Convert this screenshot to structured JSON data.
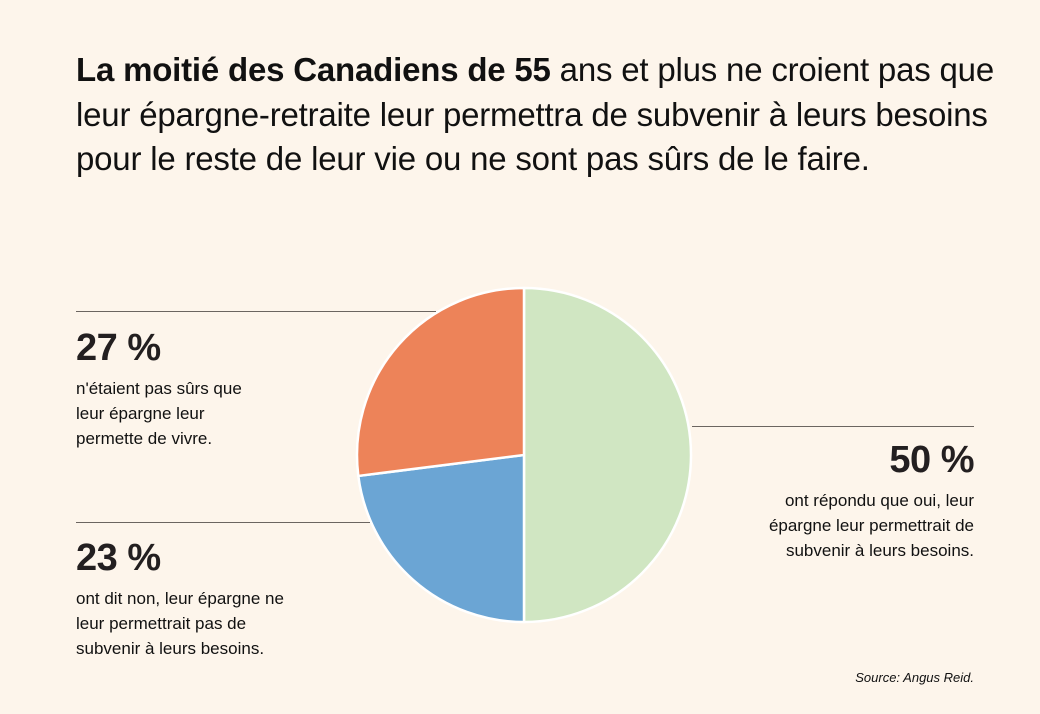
{
  "title": {
    "bold": "La moitié des Canadiens de 55",
    "regular": " ans et plus ne croient pas que leur épargne-retraite leur permettra de subvenir à leurs besoins pour le reste de leur vie ou ne sont pas sûrs de le faire."
  },
  "callouts": {
    "unsure": {
      "pct": "27 %",
      "desc_lines": [
        "n'étaient pas sûrs que",
        "leur épargne leur",
        "permette de vivre."
      ]
    },
    "no": {
      "pct": "23 %",
      "desc_lines": [
        "ont dit non, leur épargne ne",
        "leur permettrait pas de",
        "subvenir à leurs besoins."
      ]
    },
    "yes": {
      "pct": "50 %",
      "desc_lines": [
        "ont répondu que oui, leur",
        "épargne leur permettrait de",
        "subvenir à leurs besoins."
      ]
    }
  },
  "source": "Source: Angus Reid.",
  "chart_data": {
    "type": "pie",
    "title": "La moitié des Canadiens de 55 ans et plus ne croient pas que leur épargne-retraite leur permettra de subvenir à leurs besoins pour le reste de leur vie ou ne sont pas sûrs de le faire.",
    "start": "12 o'clock, clockwise",
    "slices": [
      {
        "label": "Oui",
        "value": 50,
        "color": "#d0e6c2",
        "text": "ont répondu que oui, leur épargne leur permettrait de subvenir à leurs besoins."
      },
      {
        "label": "Non",
        "value": 23,
        "color": "#6ba5d4",
        "text": "ont dit non, leur épargne ne leur permettrait pas de subvenir à leurs besoins."
      },
      {
        "label": "Pas sûrs",
        "value": 27,
        "color": "#ed8359",
        "text": "n'étaient pas sûrs que leur épargne leur permette de vivre."
      }
    ],
    "source": "Source: Angus Reid."
  }
}
